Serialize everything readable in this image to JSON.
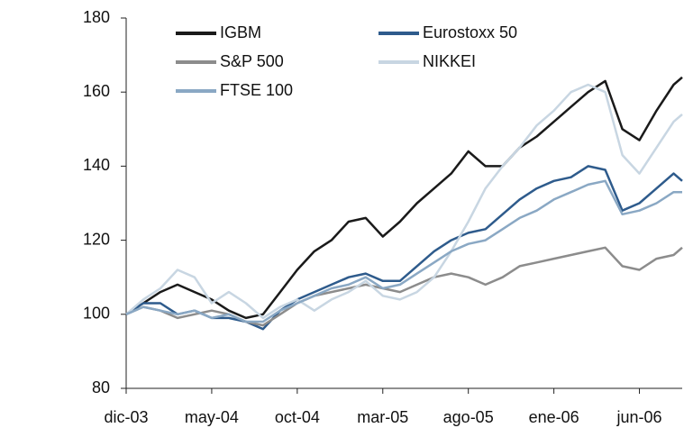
{
  "chart_data": {
    "type": "line",
    "x": [
      0,
      1,
      2,
      3,
      4,
      5,
      6,
      7,
      8,
      9,
      10,
      11,
      12,
      13,
      14,
      15,
      16,
      17,
      18,
      19,
      20,
      21,
      22,
      23,
      24,
      25,
      26,
      27,
      28,
      29,
      30,
      31,
      32,
      32.5
    ],
    "xlim": [
      0,
      32.5
    ],
    "xticks": [
      {
        "value": 0,
        "label": "dic-03"
      },
      {
        "value": 5,
        "label": "may-04"
      },
      {
        "value": 10,
        "label": "oct-04"
      },
      {
        "value": 15,
        "label": "mar-05"
      },
      {
        "value": 20,
        "label": "ago-05"
      },
      {
        "value": 25,
        "label": "ene-06"
      },
      {
        "value": 30,
        "label": "jun-06"
      }
    ],
    "ylim": [
      80,
      180
    ],
    "yticks": [
      80,
      100,
      120,
      140,
      160,
      180
    ],
    "grid": false,
    "legend": "top-left",
    "series": [
      {
        "name": "IGBM",
        "color": "#1a1a1a",
        "values": [
          100,
          103,
          106,
          108,
          106,
          104,
          101,
          99,
          100,
          106,
          112,
          117,
          120,
          125,
          126,
          121,
          125,
          130,
          134,
          138,
          144,
          140,
          140,
          145,
          148,
          152,
          156,
          160,
          163,
          150,
          147,
          155,
          162,
          164
        ]
      },
      {
        "name": "Eurostoxx 50",
        "color": "#2e5b8c",
        "values": [
          100,
          103,
          103,
          100,
          101,
          99,
          99,
          98,
          96,
          101,
          104,
          106,
          108,
          110,
          111,
          109,
          109,
          113,
          117,
          120,
          122,
          123,
          127,
          131,
          134,
          136,
          137,
          140,
          139,
          128,
          130,
          134,
          138,
          136
        ]
      },
      {
        "name": "S&P 500",
        "color": "#8c8c8c",
        "values": [
          100,
          102,
          101,
          99,
          100,
          101,
          100,
          98,
          97,
          100,
          103,
          105,
          106,
          107,
          108,
          107,
          106,
          108,
          110,
          111,
          110,
          108,
          110,
          113,
          114,
          115,
          116,
          117,
          118,
          113,
          112,
          115,
          116,
          118
        ]
      },
      {
        "name": "NIKKEI",
        "color": "#c8d6e2",
        "values": [
          100,
          104,
          107,
          112,
          110,
          103,
          106,
          103,
          99,
          102,
          104,
          101,
          104,
          106,
          109,
          105,
          104,
          106,
          110,
          117,
          125,
          134,
          140,
          145,
          151,
          155,
          160,
          162,
          160,
          143,
          138,
          145,
          152,
          154
        ]
      },
      {
        "name": "FTSE 100",
        "color": "#8aa8c4",
        "values": [
          100,
          102,
          101,
          100,
          101,
          99,
          100,
          98,
          98,
          101,
          103,
          105,
          107,
          108,
          110,
          107,
          108,
          111,
          114,
          117,
          119,
          120,
          123,
          126,
          128,
          131,
          133,
          135,
          136,
          127,
          128,
          130,
          133,
          133
        ]
      }
    ]
  }
}
